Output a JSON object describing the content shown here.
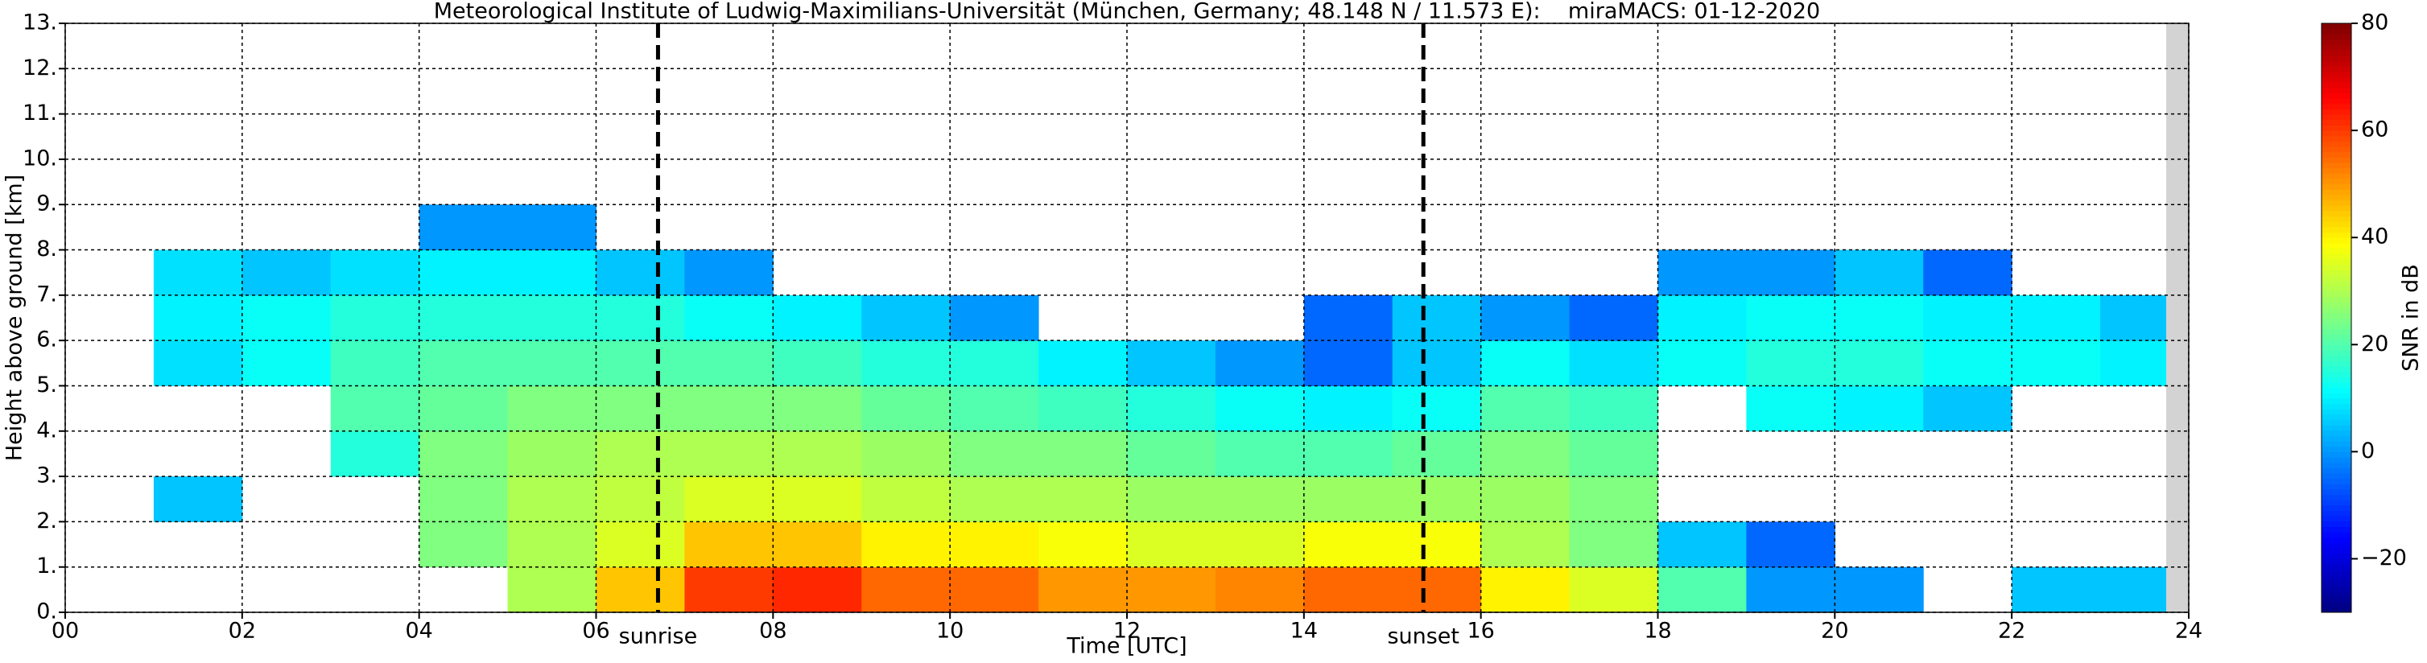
{
  "chart_data": {
    "type": "heatmap",
    "title": "Meteorological Institute of Ludwig-Maximilians-Universität (München, Germany; 48.148 N / 11.573 E):    miraMACS: 01-12-2020",
    "xlabel": "Time [UTC]",
    "ylabel": "Height above ground [km]",
    "colorbar_label": "SNR in dB",
    "colormap": "jet",
    "grid": true,
    "xlim": [
      0,
      24
    ],
    "ylim": [
      0,
      13
    ],
    "clim": [
      -30,
      80
    ],
    "xticks": [
      {
        "value": 0,
        "label": "00"
      },
      {
        "value": 2,
        "label": "02"
      },
      {
        "value": 4,
        "label": "04"
      },
      {
        "value": 6,
        "label": "06"
      },
      {
        "value": 8,
        "label": "08"
      },
      {
        "value": 10,
        "label": "10"
      },
      {
        "value": 12,
        "label": "12"
      },
      {
        "value": 14,
        "label": "14"
      },
      {
        "value": 16,
        "label": "16"
      },
      {
        "value": 18,
        "label": "18"
      },
      {
        "value": 20,
        "label": "20"
      },
      {
        "value": 22,
        "label": "22"
      },
      {
        "value": 24,
        "label": "24"
      }
    ],
    "yticks": [
      {
        "value": 0,
        "label": "0."
      },
      {
        "value": 1,
        "label": "1."
      },
      {
        "value": 2,
        "label": "2."
      },
      {
        "value": 3,
        "label": "3."
      },
      {
        "value": 4,
        "label": "4."
      },
      {
        "value": 5,
        "label": "5."
      },
      {
        "value": 6,
        "label": "6."
      },
      {
        "value": 7,
        "label": "7."
      },
      {
        "value": 8,
        "label": "8."
      },
      {
        "value": 9,
        "label": "9."
      },
      {
        "value": 10,
        "label": "10."
      },
      {
        "value": 11,
        "label": "11."
      },
      {
        "value": 12,
        "label": "12."
      },
      {
        "value": 13,
        "label": "13."
      }
    ],
    "cticks": [
      {
        "value": -20,
        "label": "−20"
      },
      0,
      20,
      40,
      60,
      80
    ],
    "annotations": [
      {
        "text": "sunrise",
        "x": 6.7
      },
      {
        "text": "sunset",
        "x": 15.35
      }
    ],
    "x_edges": [
      0,
      1,
      2,
      3,
      4,
      5,
      6,
      7,
      8,
      9,
      10,
      11,
      12,
      13,
      14,
      15,
      16,
      17,
      18,
      19,
      20,
      21,
      22,
      23,
      24
    ],
    "y_edges": [
      0,
      1,
      2,
      3,
      4,
      5,
      6,
      7,
      8,
      9
    ],
    "z": [
      [
        null,
        null,
        null,
        null,
        null,
        30,
        45,
        60,
        62,
        55,
        55,
        50,
        50,
        52,
        55,
        55,
        40,
        35,
        20,
        0,
        0,
        null,
        5,
        5
      ],
      [
        null,
        null,
        null,
        null,
        25,
        30,
        35,
        45,
        45,
        40,
        40,
        38,
        35,
        35,
        38,
        38,
        30,
        25,
        5,
        -5,
        null,
        null,
        null,
        null
      ],
      [
        null,
        5,
        null,
        null,
        25,
        30,
        32,
        35,
        35,
        32,
        30,
        30,
        28,
        28,
        28,
        28,
        28,
        25,
        null,
        null,
        null,
        null,
        null,
        null
      ],
      [
        null,
        null,
        null,
        15,
        25,
        28,
        30,
        30,
        30,
        28,
        25,
        25,
        22,
        20,
        20,
        22,
        25,
        22,
        null,
        null,
        null,
        null,
        null,
        null
      ],
      [
        null,
        null,
        null,
        20,
        22,
        25,
        25,
        25,
        25,
        22,
        20,
        18,
        15,
        12,
        10,
        12,
        20,
        18,
        null,
        12,
        10,
        5,
        null,
        null
      ],
      [
        null,
        8,
        12,
        18,
        20,
        20,
        20,
        20,
        18,
        15,
        15,
        10,
        5,
        0,
        -5,
        5,
        12,
        8,
        12,
        15,
        15,
        12,
        12,
        10
      ],
      [
        null,
        10,
        12,
        15,
        15,
        15,
        15,
        12,
        10,
        5,
        0,
        null,
        null,
        null,
        -5,
        5,
        0,
        -5,
        10,
        12,
        12,
        10,
        10,
        5
      ],
      [
        null,
        8,
        5,
        8,
        10,
        10,
        5,
        0,
        null,
        null,
        null,
        null,
        null,
        null,
        null,
        null,
        null,
        null,
        0,
        0,
        5,
        -5,
        null,
        null
      ],
      [
        null,
        null,
        null,
        null,
        0,
        0,
        null,
        null,
        null,
        null,
        null,
        null,
        null,
        null,
        null,
        null,
        null,
        null,
        null,
        null,
        null,
        null,
        null,
        null
      ]
    ]
  }
}
